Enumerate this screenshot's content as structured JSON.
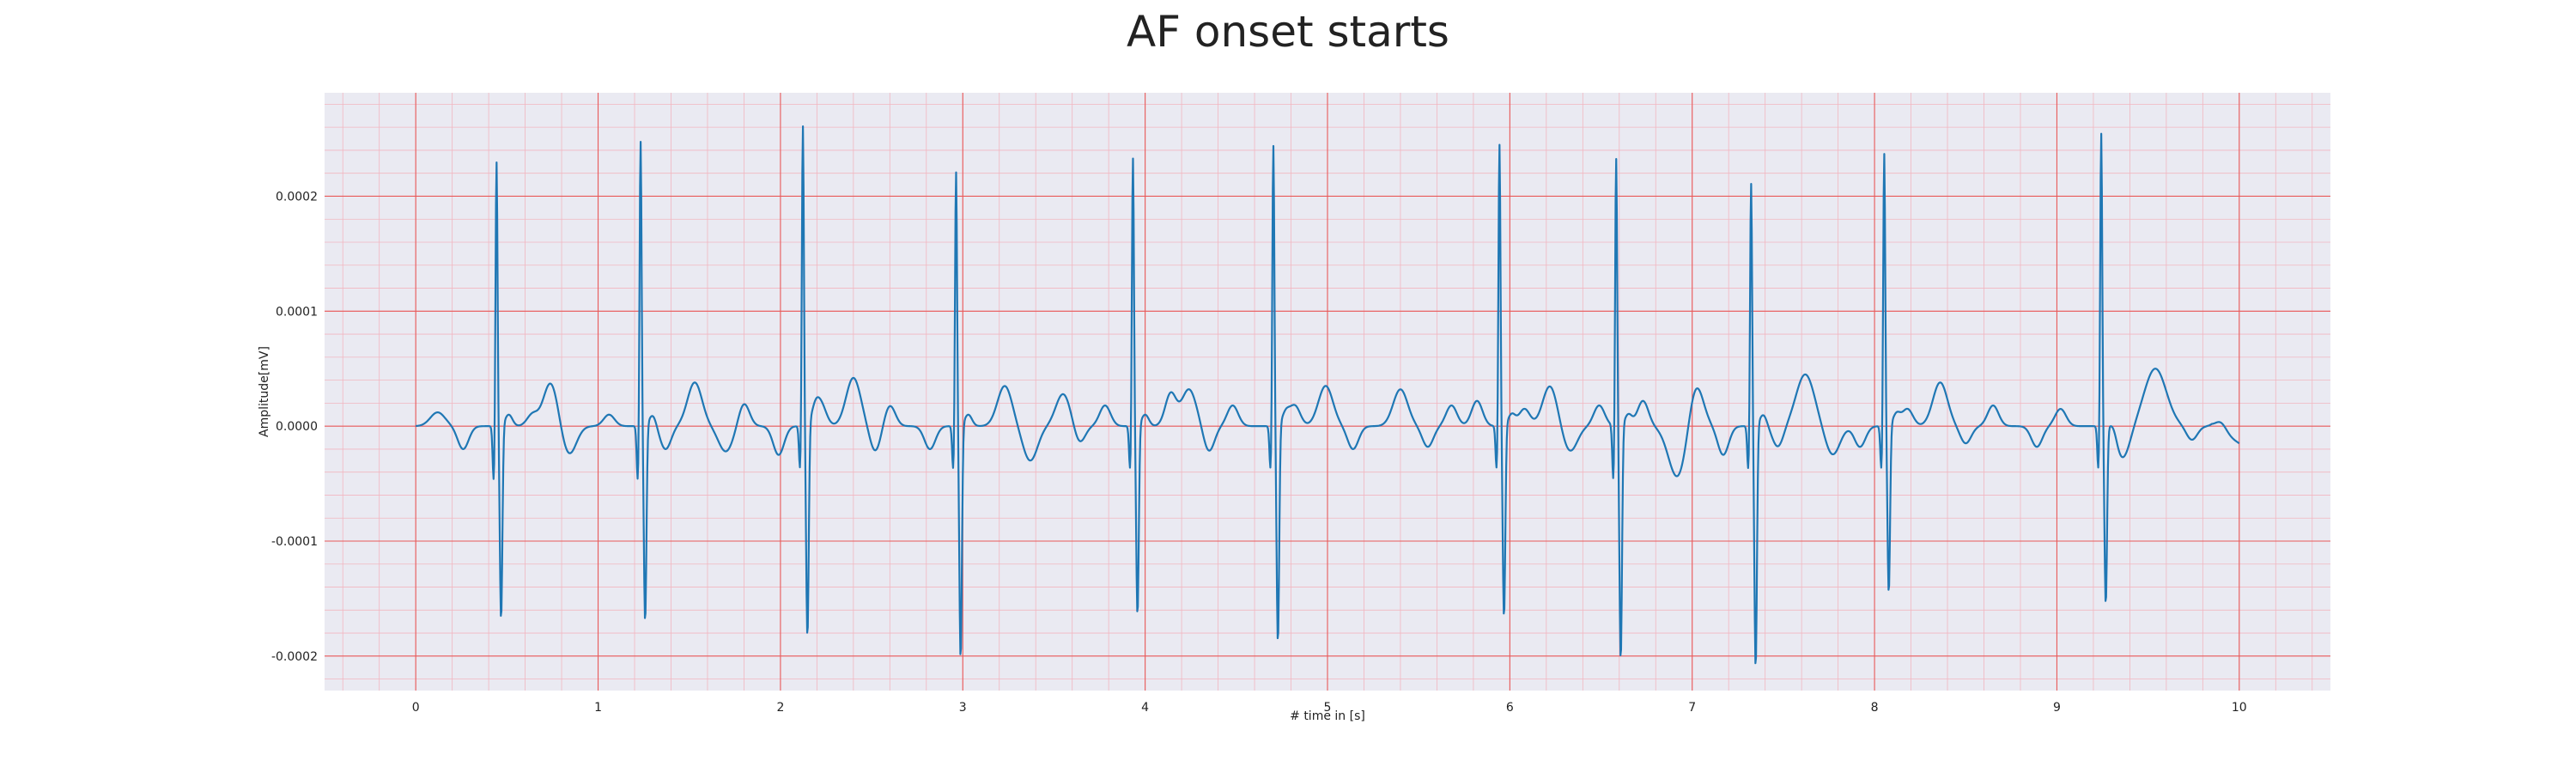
{
  "chart_data": {
    "type": "line",
    "title": "AF onset starts",
    "xlabel": "# time in [s]",
    "ylabel": "Amplitude[mV]",
    "xlim": [
      -0.5,
      10.5
    ],
    "ylim": [
      -0.00023,
      0.00029
    ],
    "x_ticks": [
      0,
      1,
      2,
      3,
      4,
      5,
      6,
      7,
      8,
      9,
      10
    ],
    "x_tick_labels": [
      "0",
      "1",
      "2",
      "3",
      "4",
      "5",
      "6",
      "7",
      "8",
      "9",
      "10"
    ],
    "y_ticks": [
      -0.0002,
      -0.0001,
      0.0,
      0.0001,
      0.0002
    ],
    "y_tick_labels": [
      "-0.0002",
      "-0.0001",
      "0.0000",
      "0.0001",
      "0.0002"
    ],
    "grid": true,
    "minor_grid": true,
    "legend": "none",
    "series": [
      {
        "color": "#1f77b4",
        "beats": [
          {
            "t": 0.44,
            "peak": 0.000232,
            "trough": -0.000169,
            "pre": -5e-05
          },
          {
            "t": 1.23,
            "peak": 0.00025,
            "trough": -0.000171,
            "pre": -5e-05
          },
          {
            "t": 2.12,
            "peak": 0.000263,
            "trough": -0.000185,
            "pre": -4e-05
          },
          {
            "t": 2.96,
            "peak": 0.000223,
            "trough": -0.000203,
            "pre": -4e-05
          },
          {
            "t": 3.93,
            "peak": 0.000235,
            "trough": -0.000165,
            "pre": -4e-05
          },
          {
            "t": 4.7,
            "peak": 0.000246,
            "trough": -0.000189,
            "pre": -4e-05
          },
          {
            "t": 5.94,
            "peak": 0.000247,
            "trough": -0.000167,
            "pre": -4e-05
          },
          {
            "t": 6.58,
            "peak": 0.000235,
            "trough": -0.000204,
            "pre": -5e-05
          },
          {
            "t": 7.32,
            "peak": 0.000213,
            "trough": -0.000211,
            "pre": -4e-05
          },
          {
            "t": 8.05,
            "peak": 0.000239,
            "trough": -0.000146,
            "pre": -4e-05
          },
          {
            "t": 9.24,
            "peak": 0.000257,
            "trough": -0.000154,
            "pre": -4e-05
          }
        ],
        "baseline_waves": [
          {
            "t": 0.12,
            "a": 1.2e-05,
            "w": 0.04
          },
          {
            "t": 0.26,
            "a": -2e-05,
            "w": 0.03
          },
          {
            "t": 0.64,
            "a": 1e-05,
            "w": 0.03
          },
          {
            "t": 0.74,
            "a": 3.8e-05,
            "w": 0.04
          },
          {
            "t": 0.84,
            "a": -2.5e-05,
            "w": 0.04
          },
          {
            "t": 1.06,
            "a": 1e-05,
            "w": 0.03
          },
          {
            "t": 1.37,
            "a": -2e-05,
            "w": 0.03
          },
          {
            "t": 1.53,
            "a": 3.8e-05,
            "w": 0.04
          },
          {
            "t": 1.7,
            "a": -2.2e-05,
            "w": 0.04
          },
          {
            "t": 1.8,
            "a": 2e-05,
            "w": 0.03
          },
          {
            "t": 1.99,
            "a": -2.5e-05,
            "w": 0.03
          },
          {
            "t": 2.22,
            "a": 2e-05,
            "w": 0.03
          },
          {
            "t": 2.4,
            "a": 4.2e-05,
            "w": 0.04
          },
          {
            "t": 2.52,
            "a": -2.2e-05,
            "w": 0.03
          },
          {
            "t": 2.6,
            "a": 1.8e-05,
            "w": 0.03
          },
          {
            "t": 2.82,
            "a": -2e-05,
            "w": 0.03
          },
          {
            "t": 3.23,
            "a": 3.5e-05,
            "w": 0.04
          },
          {
            "t": 3.37,
            "a": -3e-05,
            "w": 0.04
          },
          {
            "t": 3.55,
            "a": 2.8e-05,
            "w": 0.04
          },
          {
            "t": 3.64,
            "a": -1.5e-05,
            "w": 0.03
          },
          {
            "t": 3.78,
            "a": 1.8e-05,
            "w": 0.03
          },
          {
            "t": 4.14,
            "a": 2.8e-05,
            "w": 0.03
          },
          {
            "t": 4.24,
            "a": 3.2e-05,
            "w": 0.04
          },
          {
            "t": 4.35,
            "a": -2.2e-05,
            "w": 0.03
          },
          {
            "t": 4.48,
            "a": 1.8e-05,
            "w": 0.03
          },
          {
            "t": 4.82,
            "a": 1.8e-05,
            "w": 0.03
          },
          {
            "t": 4.99,
            "a": 3.5e-05,
            "w": 0.04
          },
          {
            "t": 5.14,
            "a": -2e-05,
            "w": 0.03
          },
          {
            "t": 5.4,
            "a": 3.2e-05,
            "w": 0.04
          },
          {
            "t": 5.55,
            "a": -1.8e-05,
            "w": 0.03
          },
          {
            "t": 5.68,
            "a": 1.8e-05,
            "w": 0.03
          },
          {
            "t": 5.82,
            "a": 2.2e-05,
            "w": 0.03
          },
          {
            "t": 6.08,
            "a": 1.5e-05,
            "w": 0.03
          },
          {
            "t": 6.22,
            "a": 3.5e-05,
            "w": 0.04
          },
          {
            "t": 6.33,
            "a": -2.2e-05,
            "w": 0.04
          },
          {
            "t": 6.49,
            "a": 1.8e-05,
            "w": 0.03
          },
          {
            "t": 6.73,
            "a": 2.2e-05,
            "w": 0.03
          },
          {
            "t": 6.92,
            "a": -4.5e-05,
            "w": 0.05
          },
          {
            "t": 7.02,
            "a": 3.8e-05,
            "w": 0.04
          },
          {
            "t": 7.17,
            "a": -2.5e-05,
            "w": 0.03
          },
          {
            "t": 7.47,
            "a": -1.8e-05,
            "w": 0.03
          },
          {
            "t": 7.62,
            "a": 4.5e-05,
            "w": 0.05
          },
          {
            "t": 7.77,
            "a": -2.5e-05,
            "w": 0.04
          },
          {
            "t": 7.92,
            "a": -1.8e-05,
            "w": 0.03
          },
          {
            "t": 8.18,
            "a": 1.5e-05,
            "w": 0.03
          },
          {
            "t": 8.36,
            "a": 3.8e-05,
            "w": 0.04
          },
          {
            "t": 8.5,
            "a": -1.5e-05,
            "w": 0.03
          },
          {
            "t": 8.65,
            "a": 1.8e-05,
            "w": 0.03
          },
          {
            "t": 8.89,
            "a": -1.8e-05,
            "w": 0.03
          },
          {
            "t": 9.02,
            "a": 1.5e-05,
            "w": 0.03
          },
          {
            "t": 9.36,
            "a": -2.8e-05,
            "w": 0.04
          },
          {
            "t": 9.54,
            "a": 5e-05,
            "w": 0.06
          },
          {
            "t": 9.74,
            "a": -1.2e-05,
            "w": 0.03
          },
          {
            "t": 9.9,
            "a": 8e-06,
            "w": 0.03
          }
        ],
        "end_value": -1.5e-05
      }
    ]
  }
}
